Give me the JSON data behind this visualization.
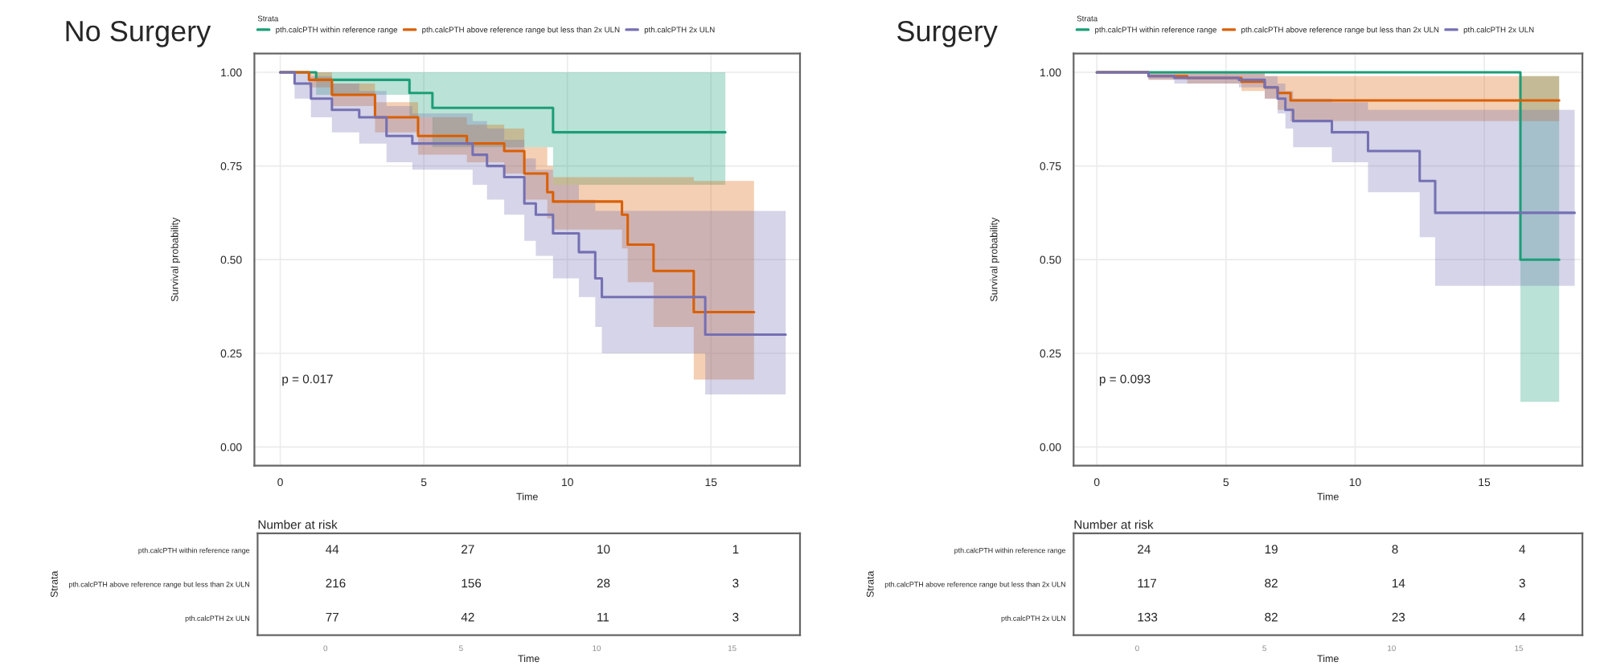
{
  "chart_data": [
    {
      "type": "step",
      "title": "No Surgery",
      "xlabel": "Time",
      "ylabel": "Survival probability",
      "legend_title": "Strata",
      "legend": "top",
      "grid": true,
      "xlim": [
        -0.9,
        18.1
      ],
      "ylim": [
        -0.05,
        1.05
      ],
      "xticks": [
        0,
        5,
        10,
        15
      ],
      "yticks": [
        {
          "value": 0,
          "label": "0.00"
        },
        {
          "value": 0.25,
          "label": "0.25"
        },
        {
          "value": 0.5,
          "label": "0.50"
        },
        {
          "value": 0.75,
          "label": "0.75"
        },
        {
          "value": 1,
          "label": "1.00"
        }
      ],
      "annotations": [
        "p = 0.017"
      ],
      "series": [
        {
          "name": "pth.calcPTH within reference range",
          "color": "#1b9e77",
          "x": [
            0,
            1.25,
            4.5,
            5.3,
            9.5,
            15.5
          ],
          "values": [
            1,
            0.98,
            0.945,
            0.905,
            0.84,
            0.84
          ],
          "lower": [
            1,
            0.94,
            0.88,
            0.8,
            0.7,
            0.7
          ],
          "upper": [
            1,
            1,
            1,
            1,
            1,
            1
          ]
        },
        {
          "name": "pth.calcPTH above reference range but less than 2x ULN",
          "color": "#d95f02",
          "x": [
            0,
            1,
            1.8,
            3.3,
            4.8,
            6.5,
            7.8,
            8.5,
            9.3,
            9.5,
            11.9,
            12.1,
            13.0,
            14.4,
            16.5
          ],
          "values": [
            1,
            0.98,
            0.94,
            0.88,
            0.83,
            0.81,
            0.79,
            0.73,
            0.68,
            0.655,
            0.62,
            0.54,
            0.47,
            0.36,
            0.36
          ],
          "lower": [
            1,
            0.96,
            0.91,
            0.84,
            0.78,
            0.76,
            0.73,
            0.66,
            0.61,
            0.58,
            0.53,
            0.44,
            0.32,
            0.18,
            0.18
          ],
          "upper": [
            1,
            1,
            0.97,
            0.92,
            0.88,
            0.86,
            0.85,
            0.8,
            0.75,
            0.72,
            0.72,
            0.72,
            0.72,
            0.71,
            0.71
          ]
        },
        {
          "name": "pth.calcPTH 2x ULN",
          "color": "#7570b3",
          "x": [
            0,
            0.5,
            1.07,
            1.8,
            2.75,
            3.7,
            4.6,
            6.7,
            7.2,
            7.8,
            8.5,
            8.9,
            9.5,
            10.4,
            10.97,
            11.2,
            14.8,
            17.6
          ],
          "values": [
            1,
            0.97,
            0.93,
            0.9,
            0.88,
            0.83,
            0.81,
            0.78,
            0.75,
            0.72,
            0.65,
            0.62,
            0.57,
            0.52,
            0.45,
            0.4,
            0.3,
            0.3
          ],
          "lower": [
            1,
            0.93,
            0.88,
            0.84,
            0.81,
            0.76,
            0.74,
            0.7,
            0.66,
            0.62,
            0.55,
            0.51,
            0.45,
            0.4,
            0.32,
            0.25,
            0.14,
            0.14
          ],
          "upper": [
            1,
            1,
            0.99,
            0.97,
            0.95,
            0.91,
            0.89,
            0.87,
            0.85,
            0.82,
            0.77,
            0.74,
            0.7,
            0.66,
            0.63,
            0.63,
            0.63,
            0.63
          ]
        }
      ]
    },
    {
      "type": "heatmap",
      "title": "Number at risk",
      "xlabel": "Time",
      "ylabel": "Strata",
      "data_labels": true,
      "categories": [
        "0",
        "5",
        "10",
        "15"
      ],
      "y_categories": [
        "pth.calcPTH within reference range",
        "pth.calcPTH above reference range but less than 2x ULN",
        "pth.calcPTH 2x ULN"
      ],
      "cells": [
        [
          44,
          27,
          10,
          1
        ],
        [
          216,
          156,
          28,
          3
        ],
        [
          77,
          42,
          11,
          3
        ]
      ]
    },
    {
      "type": "step",
      "title": "Surgery",
      "xlabel": "Time",
      "ylabel": "Survival probability",
      "legend_title": "Strata",
      "legend": "top",
      "grid": true,
      "xlim": [
        -0.9,
        18.8
      ],
      "ylim": [
        -0.05,
        1.05
      ],
      "xticks": [
        0,
        5,
        10,
        15
      ],
      "yticks": [
        {
          "value": 0,
          "label": "0.00"
        },
        {
          "value": 0.25,
          "label": "0.25"
        },
        {
          "value": 0.5,
          "label": "0.50"
        },
        {
          "value": 0.75,
          "label": "0.75"
        },
        {
          "value": 1,
          "label": "1.00"
        }
      ],
      "annotations": [
        "p = 0.093"
      ],
      "series": [
        {
          "name": "pth.calcPTH within reference range",
          "color": "#1b9e77",
          "x": [
            0,
            16.4,
            17.9
          ],
          "values": [
            1,
            0.5,
            0.5
          ],
          "lower": [
            1,
            0.12,
            0.12
          ],
          "upper": [
            1,
            0.99,
            0.99
          ]
        },
        {
          "name": "pth.calcPTH above reference range but less than 2x ULN",
          "color": "#d95f02",
          "x": [
            0,
            2,
            3.5,
            5.6,
            6.5,
            7.0,
            7.5,
            17.9
          ],
          "values": [
            1,
            0.99,
            0.985,
            0.975,
            0.96,
            0.945,
            0.925,
            0.925
          ],
          "lower": [
            1,
            0.98,
            0.97,
            0.95,
            0.93,
            0.9,
            0.87,
            0.87
          ],
          "upper": [
            1,
            1,
            1,
            1,
            0.99,
            0.99,
            0.99,
            0.99
          ]
        },
        {
          "name": "pth.calcPTH 2x ULN",
          "color": "#7570b3",
          "x": [
            0,
            2,
            3,
            5.5,
            6.5,
            7.0,
            7.3,
            7.6,
            9.1,
            10.5,
            12.5,
            13.1,
            18.5
          ],
          "values": [
            1,
            0.99,
            0.985,
            0.98,
            0.96,
            0.93,
            0.9,
            0.87,
            0.84,
            0.79,
            0.71,
            0.625,
            0.625
          ],
          "lower": [
            1,
            0.98,
            0.97,
            0.96,
            0.93,
            0.89,
            0.85,
            0.8,
            0.76,
            0.68,
            0.56,
            0.43,
            0.43
          ],
          "upper": [
            1,
            1,
            1,
            1,
            0.99,
            0.97,
            0.95,
            0.93,
            0.92,
            0.9,
            0.9,
            0.9,
            0.9
          ]
        }
      ]
    },
    {
      "type": "heatmap",
      "title": "Number at risk",
      "xlabel": "Time",
      "ylabel": "Strata",
      "data_labels": true,
      "categories": [
        "0",
        "5",
        "10",
        "15"
      ],
      "y_categories": [
        "pth.calcPTH within reference range",
        "pth.calcPTH above reference range but less than 2x ULN",
        "pth.calcPTH 2x ULN"
      ],
      "cells": [
        [
          24,
          19,
          8,
          4
        ],
        [
          117,
          82,
          14,
          3
        ],
        [
          133,
          82,
          23,
          4
        ]
      ]
    }
  ]
}
